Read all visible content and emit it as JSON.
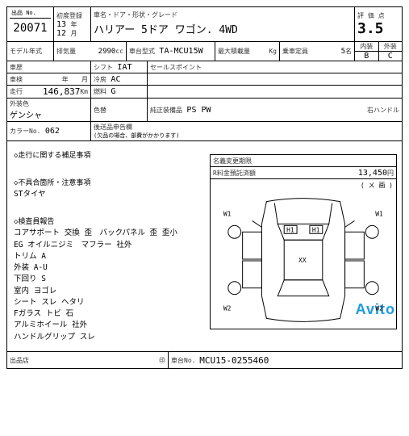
{
  "header": {
    "lot_label": "出品 No.",
    "lot_no": "20071",
    "first_reg_label": "初度登録",
    "year": "13",
    "year_suffix": "年",
    "month": "12",
    "month_suffix": "月",
    "car_name_label": "車名・ドア・形状・グレード",
    "car_name": "ハリアー 5ドア ワゴン. 4WD",
    "score_label": "評 価 点",
    "score": "3.5",
    "model_year_label": "モデル年式",
    "displacement_label": "排気量",
    "displacement": "2990",
    "displacement_unit": "cc",
    "model_code_label": "車台型式",
    "model_code": "TA-MCU15W",
    "max_load_label": "最大積載量",
    "max_load_unit": "Kg",
    "capacity_label": "乗車定員",
    "capacity": "5",
    "capacity_unit": "名",
    "interior_label": "内装",
    "exterior_label": "外装",
    "interior_grade": "B",
    "exterior_grade": "C"
  },
  "specs": {
    "body_type_label": "車歴",
    "inspection_label": "車検",
    "inspection_year_unit": "年",
    "inspection_month_unit": "月",
    "shift_label": "シフト",
    "shift": "IAT",
    "ac_label": "冷房",
    "ac": "AC",
    "sales_point_label": "セールスポイント",
    "mileage_label": "走行",
    "mileage": "146,837",
    "mileage_unit": "Km",
    "fuel_label": "燃料",
    "fuel": "G",
    "ext_color_label": "外装色",
    "ext_color": "ゲンシャ",
    "int_color_label": "色替",
    "equip_label": "純正装備品",
    "equip": "PS PW",
    "handle_label": "右ハンドル",
    "color_no_label": "カラーNo.",
    "color_no": "062",
    "recycle_label": "後送品申告欄",
    "recycle_note": "(欠品の場合、部費がかかります)"
  },
  "fees": {
    "expire_label": "名義変更期限",
    "recycle_fee_label": "R料金預託済額",
    "recycle_fee": "13,450",
    "recycle_fee_unit": "円"
  },
  "diagram": {
    "scratch_label": "( ㄨ 画 )",
    "labels": {
      "w1": "W1",
      "w2": "W2",
      "h1": "H1",
      "xx": "XX"
    }
  },
  "notes": {
    "section1_title": "◇走行に関する補足事項",
    "section2_title": "◇不具合箇所・注意事項",
    "section2_line1": "STタイヤ",
    "section3_title": "◇検査員報告",
    "lines": [
      "コアサポート 交換 歪　バックパネル 歪 歪小",
      "EG オイルニジミ　マフラー 社外",
      "トリム A",
      "外装 A-U",
      "下回り S",
      "室内 ヨゴレ",
      "シート スレ ヘタリ",
      "Fガラス トビ 石",
      "アルミホイール 社外",
      "ハンドルグリップ スレ"
    ]
  },
  "footer": {
    "seller_label": "出品店",
    "seal_label": "㊞",
    "chassis_label": "車台No.",
    "chassis": "MCU15-0255460"
  },
  "watermark": "Avito",
  "colors": {
    "line": "#000000",
    "watermark": "#1e9adf",
    "bg": "#ffffff"
  }
}
